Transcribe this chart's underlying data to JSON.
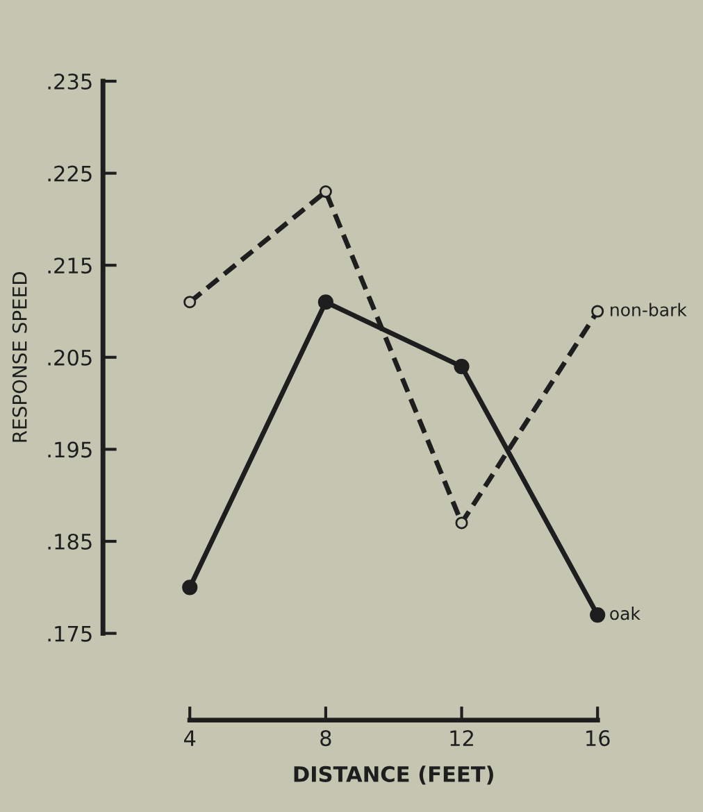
{
  "chart_data": {
    "type": "line",
    "xlabel": "DISTANCE (FEET)",
    "ylabel": "RESPONSE SPEED",
    "x": [
      4,
      8,
      12,
      16
    ],
    "series": [
      {
        "name": "oak",
        "color": "#1e1e1e",
        "values": [
          0.18,
          0.211,
          0.204,
          0.177
        ],
        "line_style": "solid",
        "marker": "circle"
      },
      {
        "name": "non-bark",
        "color": "#1e1e1e",
        "values": [
          0.211,
          0.223,
          0.187,
          0.21
        ],
        "line_style": "dashed",
        "marker": "circle"
      }
    ],
    "xlim": [
      4,
      16
    ],
    "xticks": [
      4,
      8,
      12,
      16
    ],
    "ylim": [
      0.175,
      0.235
    ],
    "yticks": [
      {
        "value": 0.175,
        "label": ".175"
      },
      {
        "value": 0.185,
        "label": ".185"
      },
      {
        "value": 0.195,
        "label": ".195"
      },
      {
        "value": 0.205,
        "label": ".205"
      },
      {
        "value": 0.215,
        "label": ".215"
      },
      {
        "value": 0.225,
        "label": ".225"
      },
      {
        "value": 0.235,
        "label": ".235"
      }
    ]
  }
}
